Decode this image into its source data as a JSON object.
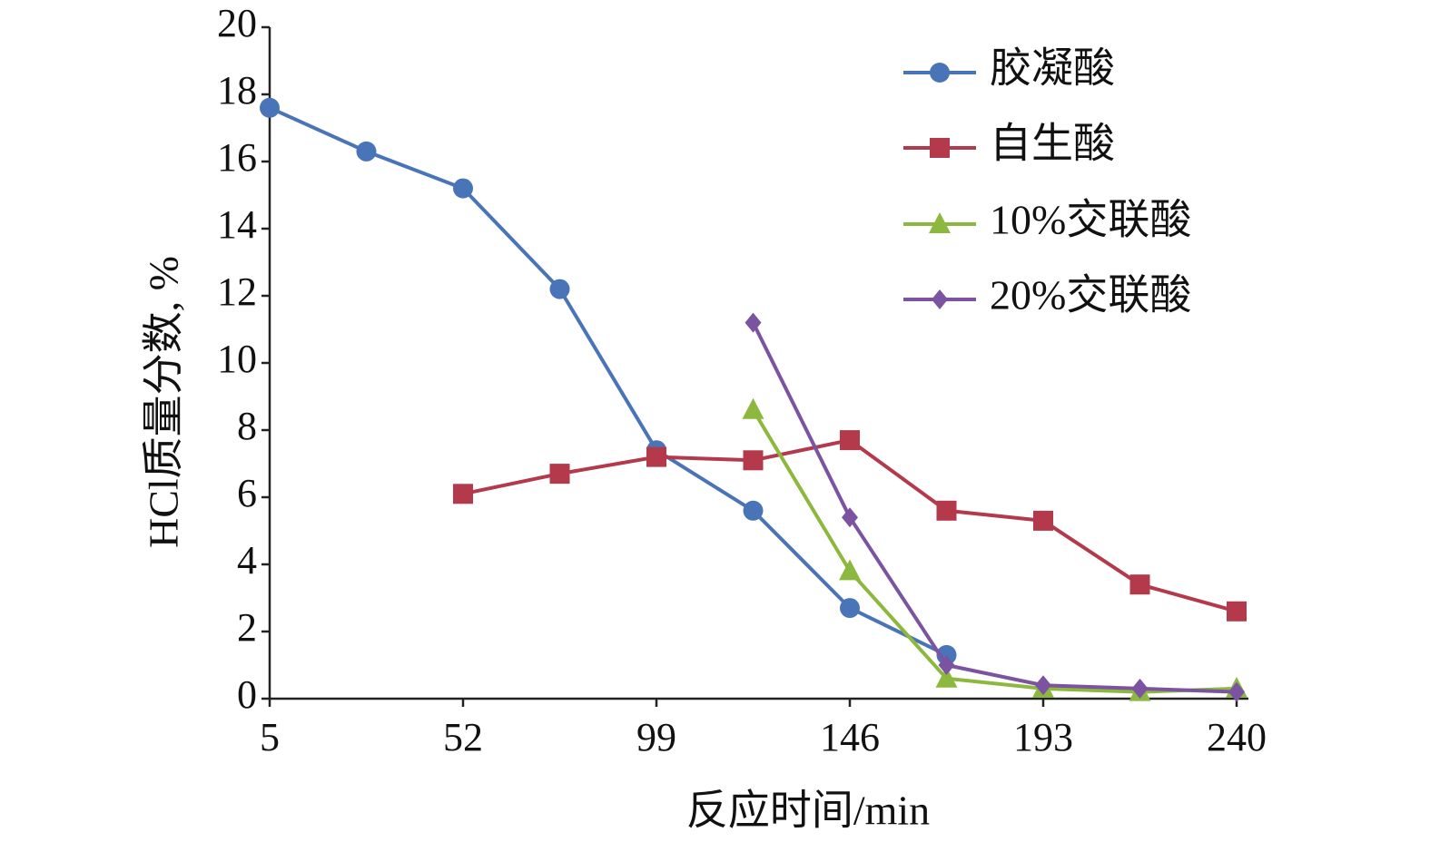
{
  "chart_data": {
    "type": "line",
    "xlabel": "反应时间/min",
    "ylabel": "HCl质量分数, %",
    "xlim": [
      5,
      240
    ],
    "ylim": [
      0,
      20
    ],
    "xticks": [
      5,
      52,
      99,
      146,
      193,
      240
    ],
    "yticks": [
      0,
      2,
      4,
      6,
      8,
      10,
      12,
      14,
      16,
      18,
      20
    ],
    "grid": false,
    "legend": "top-right",
    "series": [
      {
        "name": "胶凝酸",
        "color": "#4a74b8",
        "marker": "circle",
        "x": [
          5,
          28.5,
          52,
          75.5,
          99,
          122.5,
          146,
          169.5
        ],
        "y": [
          17.6,
          16.3,
          15.2,
          12.2,
          7.4,
          5.6,
          2.7,
          1.3
        ]
      },
      {
        "name": "自生酸",
        "color": "#b3394b",
        "marker": "square",
        "x": [
          52,
          75.5,
          99,
          122.5,
          146,
          169.5,
          193,
          216.5,
          240
        ],
        "y": [
          6.1,
          6.7,
          7.2,
          7.1,
          7.7,
          5.6,
          5.3,
          3.4,
          2.6
        ]
      },
      {
        "name": "10%交联酸",
        "color": "#8db83f",
        "marker": "triangle",
        "x": [
          122.5,
          146,
          169.5,
          193,
          216.5,
          240
        ],
        "y": [
          8.6,
          3.8,
          0.6,
          0.3,
          0.2,
          0.3
        ]
      },
      {
        "name": "20%交联酸",
        "color": "#7b53a1",
        "marker": "diamond",
        "x": [
          122.5,
          146,
          169.5,
          193,
          216.5,
          240
        ],
        "y": [
          11.2,
          5.4,
          1.0,
          0.4,
          0.3,
          0.2
        ]
      }
    ]
  }
}
